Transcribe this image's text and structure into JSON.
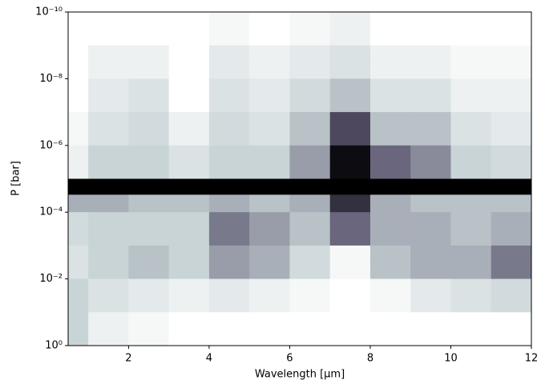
{
  "chart_data": {
    "type": "heatmap",
    "x_label": "Wavelength [µm]",
    "y_label": "P [bar]",
    "colormap": "bone_r",
    "log_y": true,
    "xlim": [
      0.5,
      12
    ],
    "xticks": [
      2,
      4,
      6,
      8,
      10,
      12
    ],
    "ylim": [
      1,
      1e-10
    ],
    "yticks": [
      {
        "value": 1,
        "label": "10⁰"
      },
      {
        "value": 0.01,
        "label": "10⁻²"
      },
      {
        "value": 0.0001,
        "label": "10⁻⁴"
      },
      {
        "value": 1e-06,
        "label": "10⁻⁶"
      },
      {
        "value": 1e-08,
        "label": "10⁻⁸"
      },
      {
        "value": 1e-10,
        "label": "10⁻¹⁰"
      }
    ],
    "xbins": [
      0.5,
      1,
      2,
      3,
      4,
      5,
      6,
      7,
      8,
      9,
      10,
      11,
      12
    ],
    "ybins": [
      1e-10,
      3e-10,
      1e-09,
      3e-09,
      1e-08,
      3e-08,
      1e-07,
      3e-07,
      1e-06,
      3e-06,
      1e-05,
      3e-05,
      0.0001,
      0.0003,
      0.001,
      0.003,
      0.01,
      0.03,
      0.1,
      0.3,
      1
    ],
    "z": [
      [
        0,
        0,
        0,
        0,
        0.05,
        0,
        0.05,
        0.1,
        0,
        0,
        0,
        0
      ],
      [
        0,
        0,
        0,
        0,
        0.05,
        0,
        0.05,
        0.1,
        0,
        0,
        0,
        0
      ],
      [
        0,
        0.1,
        0.1,
        0,
        0.15,
        0.1,
        0.15,
        0.2,
        0.1,
        0.1,
        0.05,
        0.05
      ],
      [
        0,
        0.1,
        0.1,
        0,
        0.15,
        0.1,
        0.15,
        0.2,
        0.1,
        0.1,
        0.05,
        0.05
      ],
      [
        0,
        0.15,
        0.2,
        0,
        0.2,
        0.15,
        0.25,
        0.35,
        0.2,
        0.2,
        0.1,
        0.1
      ],
      [
        0,
        0.15,
        0.2,
        0,
        0.2,
        0.15,
        0.25,
        0.35,
        0.2,
        0.2,
        0.1,
        0.1
      ],
      [
        0.05,
        0.2,
        0.25,
        0.1,
        0.25,
        0.2,
        0.35,
        0.7,
        0.35,
        0.35,
        0.2,
        0.15
      ],
      [
        0.05,
        0.2,
        0.25,
        0.1,
        0.25,
        0.2,
        0.35,
        0.7,
        0.35,
        0.35,
        0.2,
        0.15
      ],
      [
        0.1,
        0.3,
        0.3,
        0.2,
        0.3,
        0.3,
        0.45,
        0.95,
        0.6,
        0.5,
        0.3,
        0.25
      ],
      [
        0.1,
        0.3,
        0.3,
        0.2,
        0.3,
        0.3,
        0.45,
        0.95,
        0.6,
        0.5,
        0.3,
        0.25
      ],
      [
        1,
        1,
        1,
        1,
        1,
        1,
        1,
        1,
        1,
        1,
        1,
        1
      ],
      [
        0.4,
        0.4,
        0.35,
        0.35,
        0.4,
        0.35,
        0.4,
        0.8,
        0.4,
        0.35,
        0.35,
        0.35
      ],
      [
        0.25,
        0.3,
        0.3,
        0.3,
        0.55,
        0.45,
        0.35,
        0.6,
        0.4,
        0.4,
        0.35,
        0.4
      ],
      [
        0.25,
        0.3,
        0.3,
        0.3,
        0.55,
        0.45,
        0.35,
        0.6,
        0.4,
        0.4,
        0.35,
        0.4
      ],
      [
        0.2,
        0.3,
        0.35,
        0.3,
        0.45,
        0.4,
        0.25,
        0.05,
        0.35,
        0.4,
        0.4,
        0.55
      ],
      [
        0.2,
        0.3,
        0.35,
        0.3,
        0.45,
        0.4,
        0.25,
        0.05,
        0.35,
        0.4,
        0.4,
        0.55
      ],
      [
        0.3,
        0.2,
        0.15,
        0.1,
        0.15,
        0.1,
        0.05,
        0,
        0.05,
        0.15,
        0.2,
        0.25
      ],
      [
        0.3,
        0.2,
        0.15,
        0.1,
        0.15,
        0.1,
        0.05,
        0,
        0.05,
        0.15,
        0.2,
        0.25
      ],
      [
        0.3,
        0.1,
        0.05,
        0,
        0,
        0,
        0,
        0,
        0,
        0,
        0,
        0
      ],
      [
        0.3,
        0.1,
        0.05,
        0,
        0,
        0,
        0,
        0,
        0,
        0,
        0,
        0
      ]
    ]
  }
}
